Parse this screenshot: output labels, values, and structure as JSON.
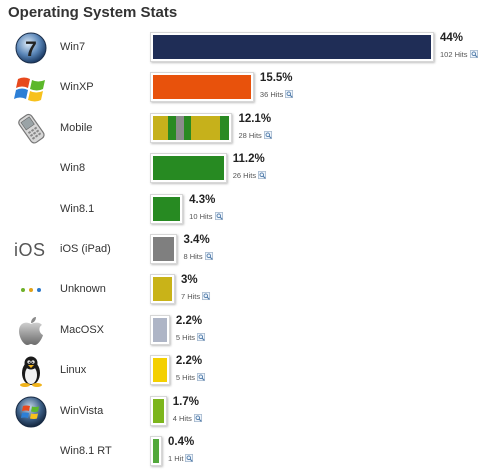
{
  "title": "Operating System Stats",
  "chart_data": {
    "type": "bar",
    "orientation": "horizontal",
    "categories": [
      "Win7",
      "WinXP",
      "Mobile",
      "Win8",
      "Win8.1",
      "iOS (iPad)",
      "Unknown",
      "MacOSX",
      "Linux",
      "WinVista",
      "Win8.1 RT"
    ],
    "values": [
      44,
      15.5,
      12.1,
      11.2,
      4.3,
      3.4,
      3,
      2.2,
      2.2,
      1.7,
      0.4
    ],
    "percent_labels": [
      "44%",
      "15.5%",
      "12.1%",
      "11.2%",
      "4.3%",
      "3.4%",
      "3%",
      "2.2%",
      "2.2%",
      "1.7%",
      "0.4%"
    ],
    "hits_labels": [
      "102 Hits",
      "36 Hits",
      "28 Hits",
      "26 Hits",
      "10 Hits",
      "8 Hits",
      "7 Hits",
      "5 Hits",
      "5 Hits",
      "4 Hits",
      "1 Hit"
    ],
    "colors": [
      "#1f2d56",
      "#e8520c",
      "#c6b11b",
      "#278a22",
      "#278a22",
      "#7f7f7f",
      "#c9b318",
      "#aeb5c6",
      "#f4d000",
      "#7cb51c",
      "#52a83b"
    ],
    "mobile_segments": [
      "#c6b11b",
      "#2a8a22",
      "#8c8c8c",
      "#2a8a22",
      "#c6b11b",
      "#2a8a22"
    ],
    "icons": [
      "windows7-orb-icon",
      "windows-xp-flag-icon",
      "mobile-phone-icon",
      "",
      "",
      "ios-text-icon",
      "three-dots-icon",
      "apple-logo-icon",
      "linux-penguin-icon",
      "windows-vista-orb-icon",
      ""
    ]
  },
  "icon_text": {
    "ios": "iOS"
  }
}
